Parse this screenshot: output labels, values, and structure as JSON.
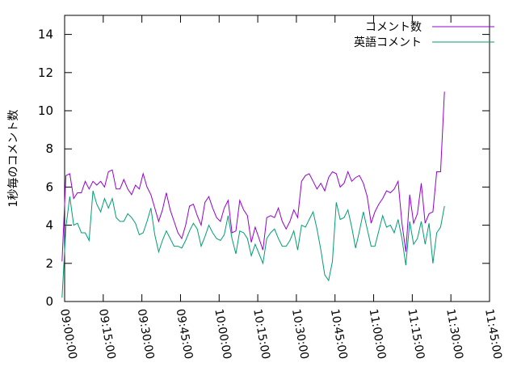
{
  "chart_data": {
    "type": "line",
    "title": "",
    "ylabel": "1秒毎のコメント数",
    "xlabel": "",
    "ylim": [
      0,
      15
    ],
    "yticks": [
      0,
      2,
      4,
      6,
      8,
      10,
      12,
      14
    ],
    "xlim": [
      "09:00:00",
      "11:45:00"
    ],
    "xticks": [
      "09:00:00",
      "09:15:00",
      "09:30:00",
      "09:45:00",
      "10:00:00",
      "10:15:00",
      "10:30:00",
      "10:45:00",
      "11:00:00",
      "11:15:00",
      "11:30:00",
      "11:45:00"
    ],
    "grid": false,
    "legend_position": "top-right",
    "x_start": "08:59:00",
    "x_step_minutes": 1.5,
    "series": [
      {
        "name": "コメント数",
        "color": "#9400d3",
        "values": [
          2.1,
          6.6,
          6.7,
          5.4,
          5.7,
          5.7,
          6.3,
          5.9,
          6.3,
          6.1,
          6.3,
          6.0,
          6.8,
          6.9,
          5.9,
          5.9,
          6.4,
          5.9,
          5.6,
          6.1,
          5.9,
          6.7,
          6.0,
          5.6,
          4.9,
          4.2,
          4.8,
          5.7,
          4.8,
          4.2,
          3.6,
          3.3,
          4.0,
          5.0,
          5.1,
          4.5,
          4.0,
          5.2,
          5.5,
          4.9,
          4.4,
          4.2,
          4.9,
          5.3,
          3.6,
          3.7,
          5.3,
          4.8,
          4.5,
          3.1,
          3.9,
          3.3,
          2.7,
          4.4,
          4.5,
          4.4,
          4.9,
          4.2,
          3.8,
          4.2,
          4.8,
          4.4,
          6.3,
          6.6,
          6.7,
          6.3,
          5.9,
          6.2,
          5.8,
          6.5,
          6.8,
          6.7,
          6.0,
          6.2,
          6.8,
          6.3,
          6.5,
          6.6,
          6.2,
          5.5,
          4.1,
          4.7,
          5.1,
          5.4,
          5.8,
          5.7,
          5.9,
          6.3,
          4.1,
          2.6,
          5.6,
          4.1,
          4.6,
          6.2,
          4.1,
          4.6,
          4.7,
          6.8,
          6.8,
          11.0
        ]
      },
      {
        "name": "英語コメント",
        "color": "#009e73",
        "values": [
          0.2,
          3.9,
          5.5,
          4.0,
          4.1,
          3.6,
          3.6,
          3.2,
          5.8,
          5.1,
          4.7,
          5.4,
          4.9,
          5.4,
          4.4,
          4.2,
          4.2,
          4.6,
          4.4,
          4.1,
          3.5,
          3.6,
          4.2,
          4.9,
          3.5,
          2.6,
          3.2,
          3.7,
          3.3,
          2.9,
          2.9,
          2.8,
          3.2,
          3.7,
          4.1,
          3.8,
          2.9,
          3.4,
          4.0,
          3.6,
          3.3,
          3.2,
          3.5,
          4.5,
          3.3,
          2.5,
          3.7,
          3.6,
          3.3,
          2.4,
          3.0,
          2.5,
          2.0,
          3.3,
          3.6,
          3.8,
          3.3,
          2.9,
          2.9,
          3.2,
          3.7,
          2.7,
          4.0,
          3.9,
          4.3,
          4.7,
          3.8,
          2.7,
          1.4,
          1.1,
          2.1,
          5.2,
          4.3,
          4.4,
          4.8,
          3.9,
          2.8,
          3.7,
          4.7,
          3.8,
          2.9,
          2.9,
          3.7,
          4.5,
          3.9,
          4.0,
          3.6,
          4.3,
          3.3,
          1.9,
          4.2,
          3.0,
          3.3,
          4.2,
          3.0,
          4.1,
          2.0,
          3.6,
          3.9,
          5.0
        ]
      }
    ]
  }
}
